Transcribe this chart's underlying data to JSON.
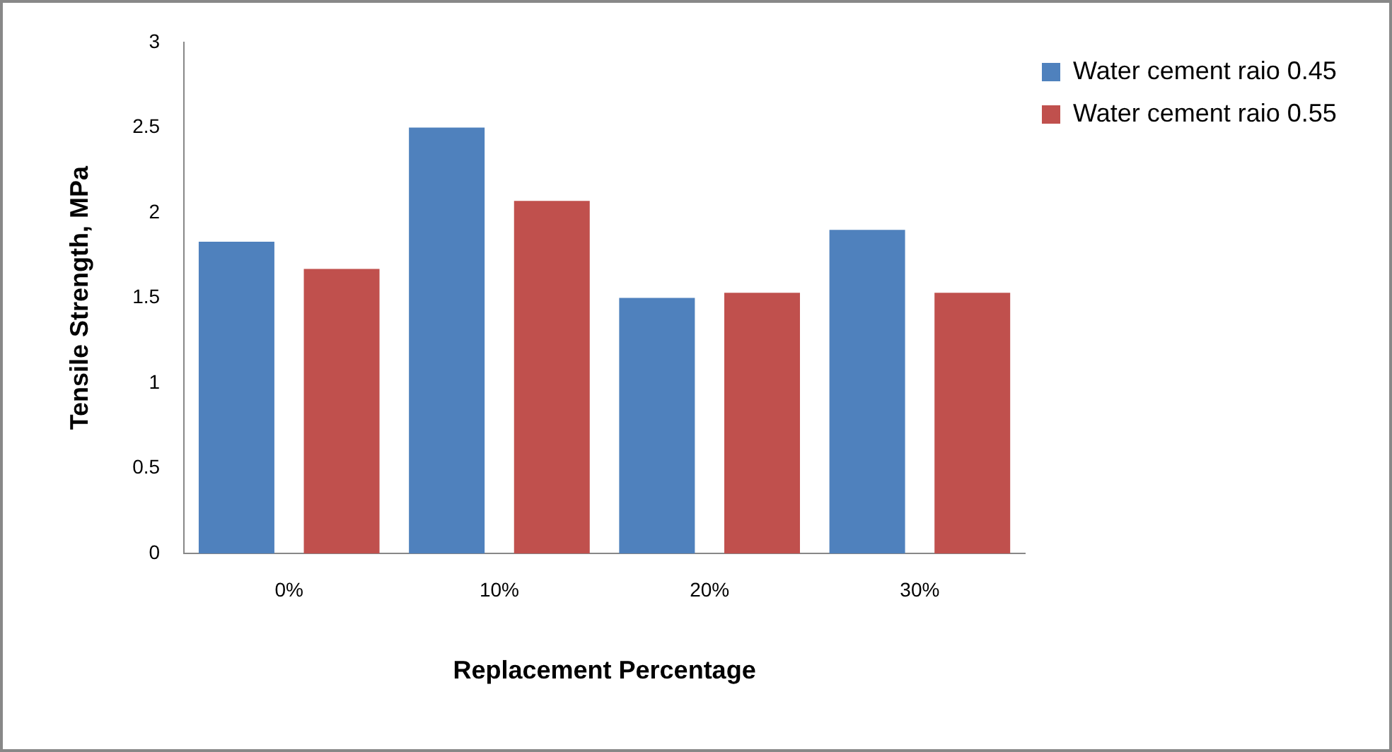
{
  "chart_data": {
    "type": "bar",
    "xlabel": "Replacement Percentage",
    "ylabel": "Tensile Strength, MPa",
    "categories": [
      "0%",
      "10%",
      "20%",
      "30%"
    ],
    "series": [
      {
        "name": "Water cement raio 0.45",
        "color": "#4f81bd",
        "values": [
          1.83,
          2.5,
          1.5,
          1.9
        ]
      },
      {
        "name": "Water cement raio 0.55",
        "color": "#c0504d",
        "values": [
          1.67,
          2.07,
          1.53,
          1.53
        ]
      }
    ],
    "ylim": [
      0,
      3
    ],
    "yticks": [
      0,
      0.5,
      1,
      1.5,
      2,
      2.5,
      3
    ],
    "grid": false,
    "legend": "top right"
  }
}
